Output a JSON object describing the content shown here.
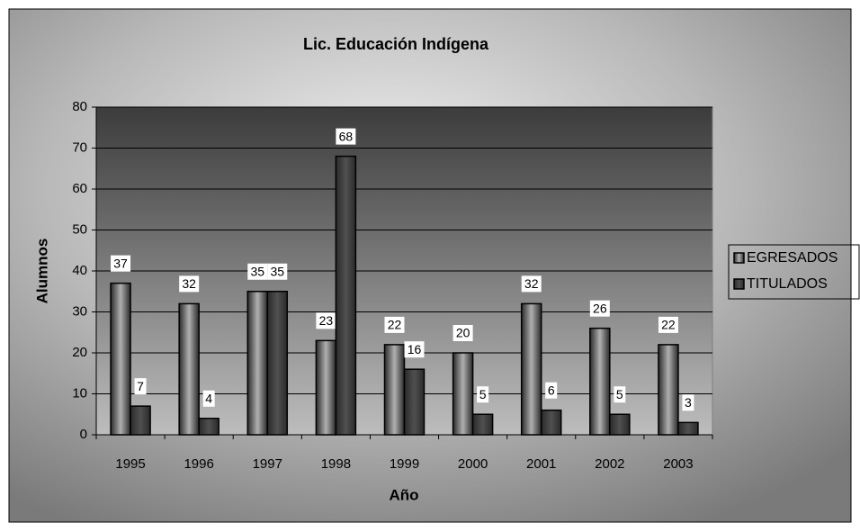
{
  "chart_data": {
    "type": "bar",
    "title": "Lic. Educación Indígena",
    "x_label": "Año",
    "y_label": "Alumnos",
    "categories": [
      "1995",
      "1996",
      "1997",
      "1998",
      "1999",
      "2000",
      "2001",
      "2002",
      "2003"
    ],
    "series": [
      {
        "name": "EGRESADOS",
        "color": "#b0b0b0",
        "values": [
          37,
          32,
          35,
          23,
          22,
          20,
          32,
          26,
          22
        ]
      },
      {
        "name": "TITULADOS",
        "color": "#505050",
        "values": [
          7,
          4,
          35,
          68,
          16,
          5,
          6,
          5,
          3
        ]
      }
    ],
    "ylim": [
      0,
      80
    ],
    "yticks": [
      0,
      10,
      20,
      30,
      40,
      50,
      60,
      70,
      80
    ],
    "grid": true,
    "legend": "right"
  }
}
